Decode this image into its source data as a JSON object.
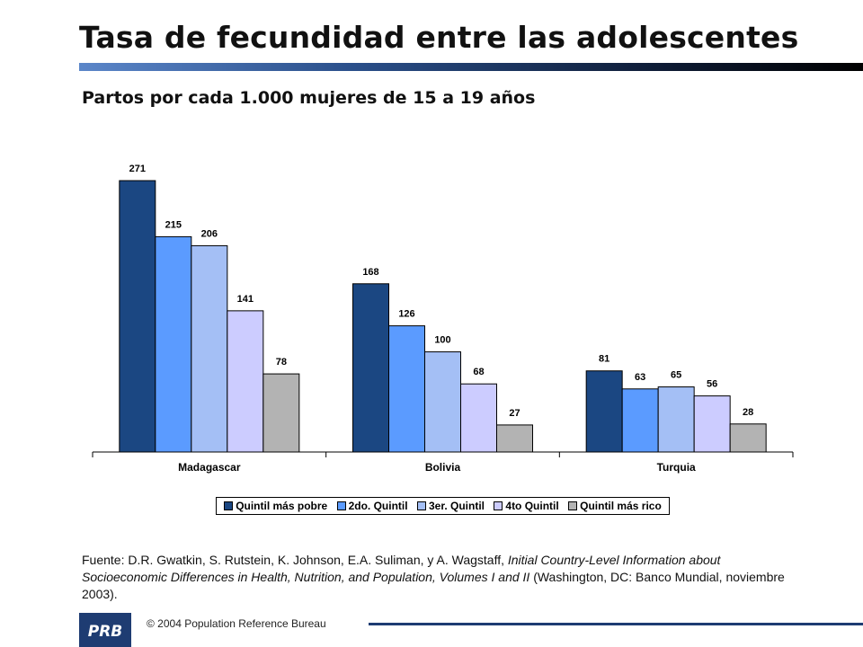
{
  "title": "Tasa de fecundidad entre las adolescentes",
  "subtitle": "Partos por cada 1.000 mujeres de 15 a 19 años",
  "chart_data": {
    "type": "bar",
    "categories": [
      "Madagascar",
      "Bolivia",
      "Turquia"
    ],
    "series": [
      {
        "name": "Quintil más pobre",
        "color": "#1b4782",
        "values": [
          271,
          168,
          81
        ]
      },
      {
        "name": "2do. Quintil",
        "color": "#5b9bff",
        "values": [
          215,
          126,
          63
        ]
      },
      {
        "name": "3er. Quintil",
        "color": "#a4bff5",
        "values": [
          206,
          100,
          65
        ]
      },
      {
        "name": "4to Quintil",
        "color": "#ccccff",
        "values": [
          141,
          68,
          56
        ]
      },
      {
        "name": "Quintil más rico",
        "color": "#b3b3b3",
        "values": [
          78,
          27,
          28
        ]
      }
    ],
    "ylim": [
      0,
      280
    ],
    "legend": "bottom",
    "grid": false,
    "data_labels": true
  },
  "source": {
    "lead": "Fuente: D.R. Gwatkin, S. Rutstein, K. Johnson, E.A. Suliman, y A. Wagstaff, ",
    "italic": "Initial Country-Level Information about Socioeconomic Differences in Health, Nutrition, and Population, Volumes I and II",
    "tail": " (Washington, DC: Banco Mundial, noviembre 2003)."
  },
  "footer": {
    "logo_text": "PRB",
    "copyright": "© 2004 Population Reference Bureau"
  },
  "colors": {
    "title_rule_start": "#5b86c9",
    "title_rule_end": "#000000",
    "footer_rule": "#1e3c72",
    "logo": "#1e3c72"
  }
}
